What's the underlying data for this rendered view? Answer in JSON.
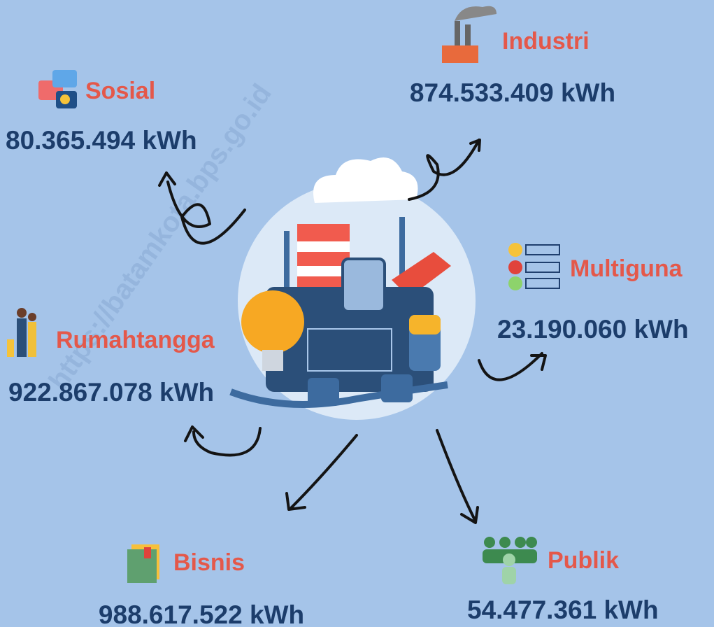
{
  "watermark": "https://batamkota.bps.go.id",
  "sectors": [
    {
      "label": "Sosial",
      "value": "80.365.494 kWh"
    },
    {
      "label": "Industri",
      "value": "874.533.409 kWh"
    },
    {
      "label": "Multiguna",
      "value": "23.190.060 kWh"
    },
    {
      "label": "Rumahtangga",
      "value": "922.867.078 kWh"
    },
    {
      "label": "Bisnis",
      "value": "988.617.522 kWh"
    },
    {
      "label": "Publik",
      "value": "54.477.361 kWh"
    }
  ]
}
